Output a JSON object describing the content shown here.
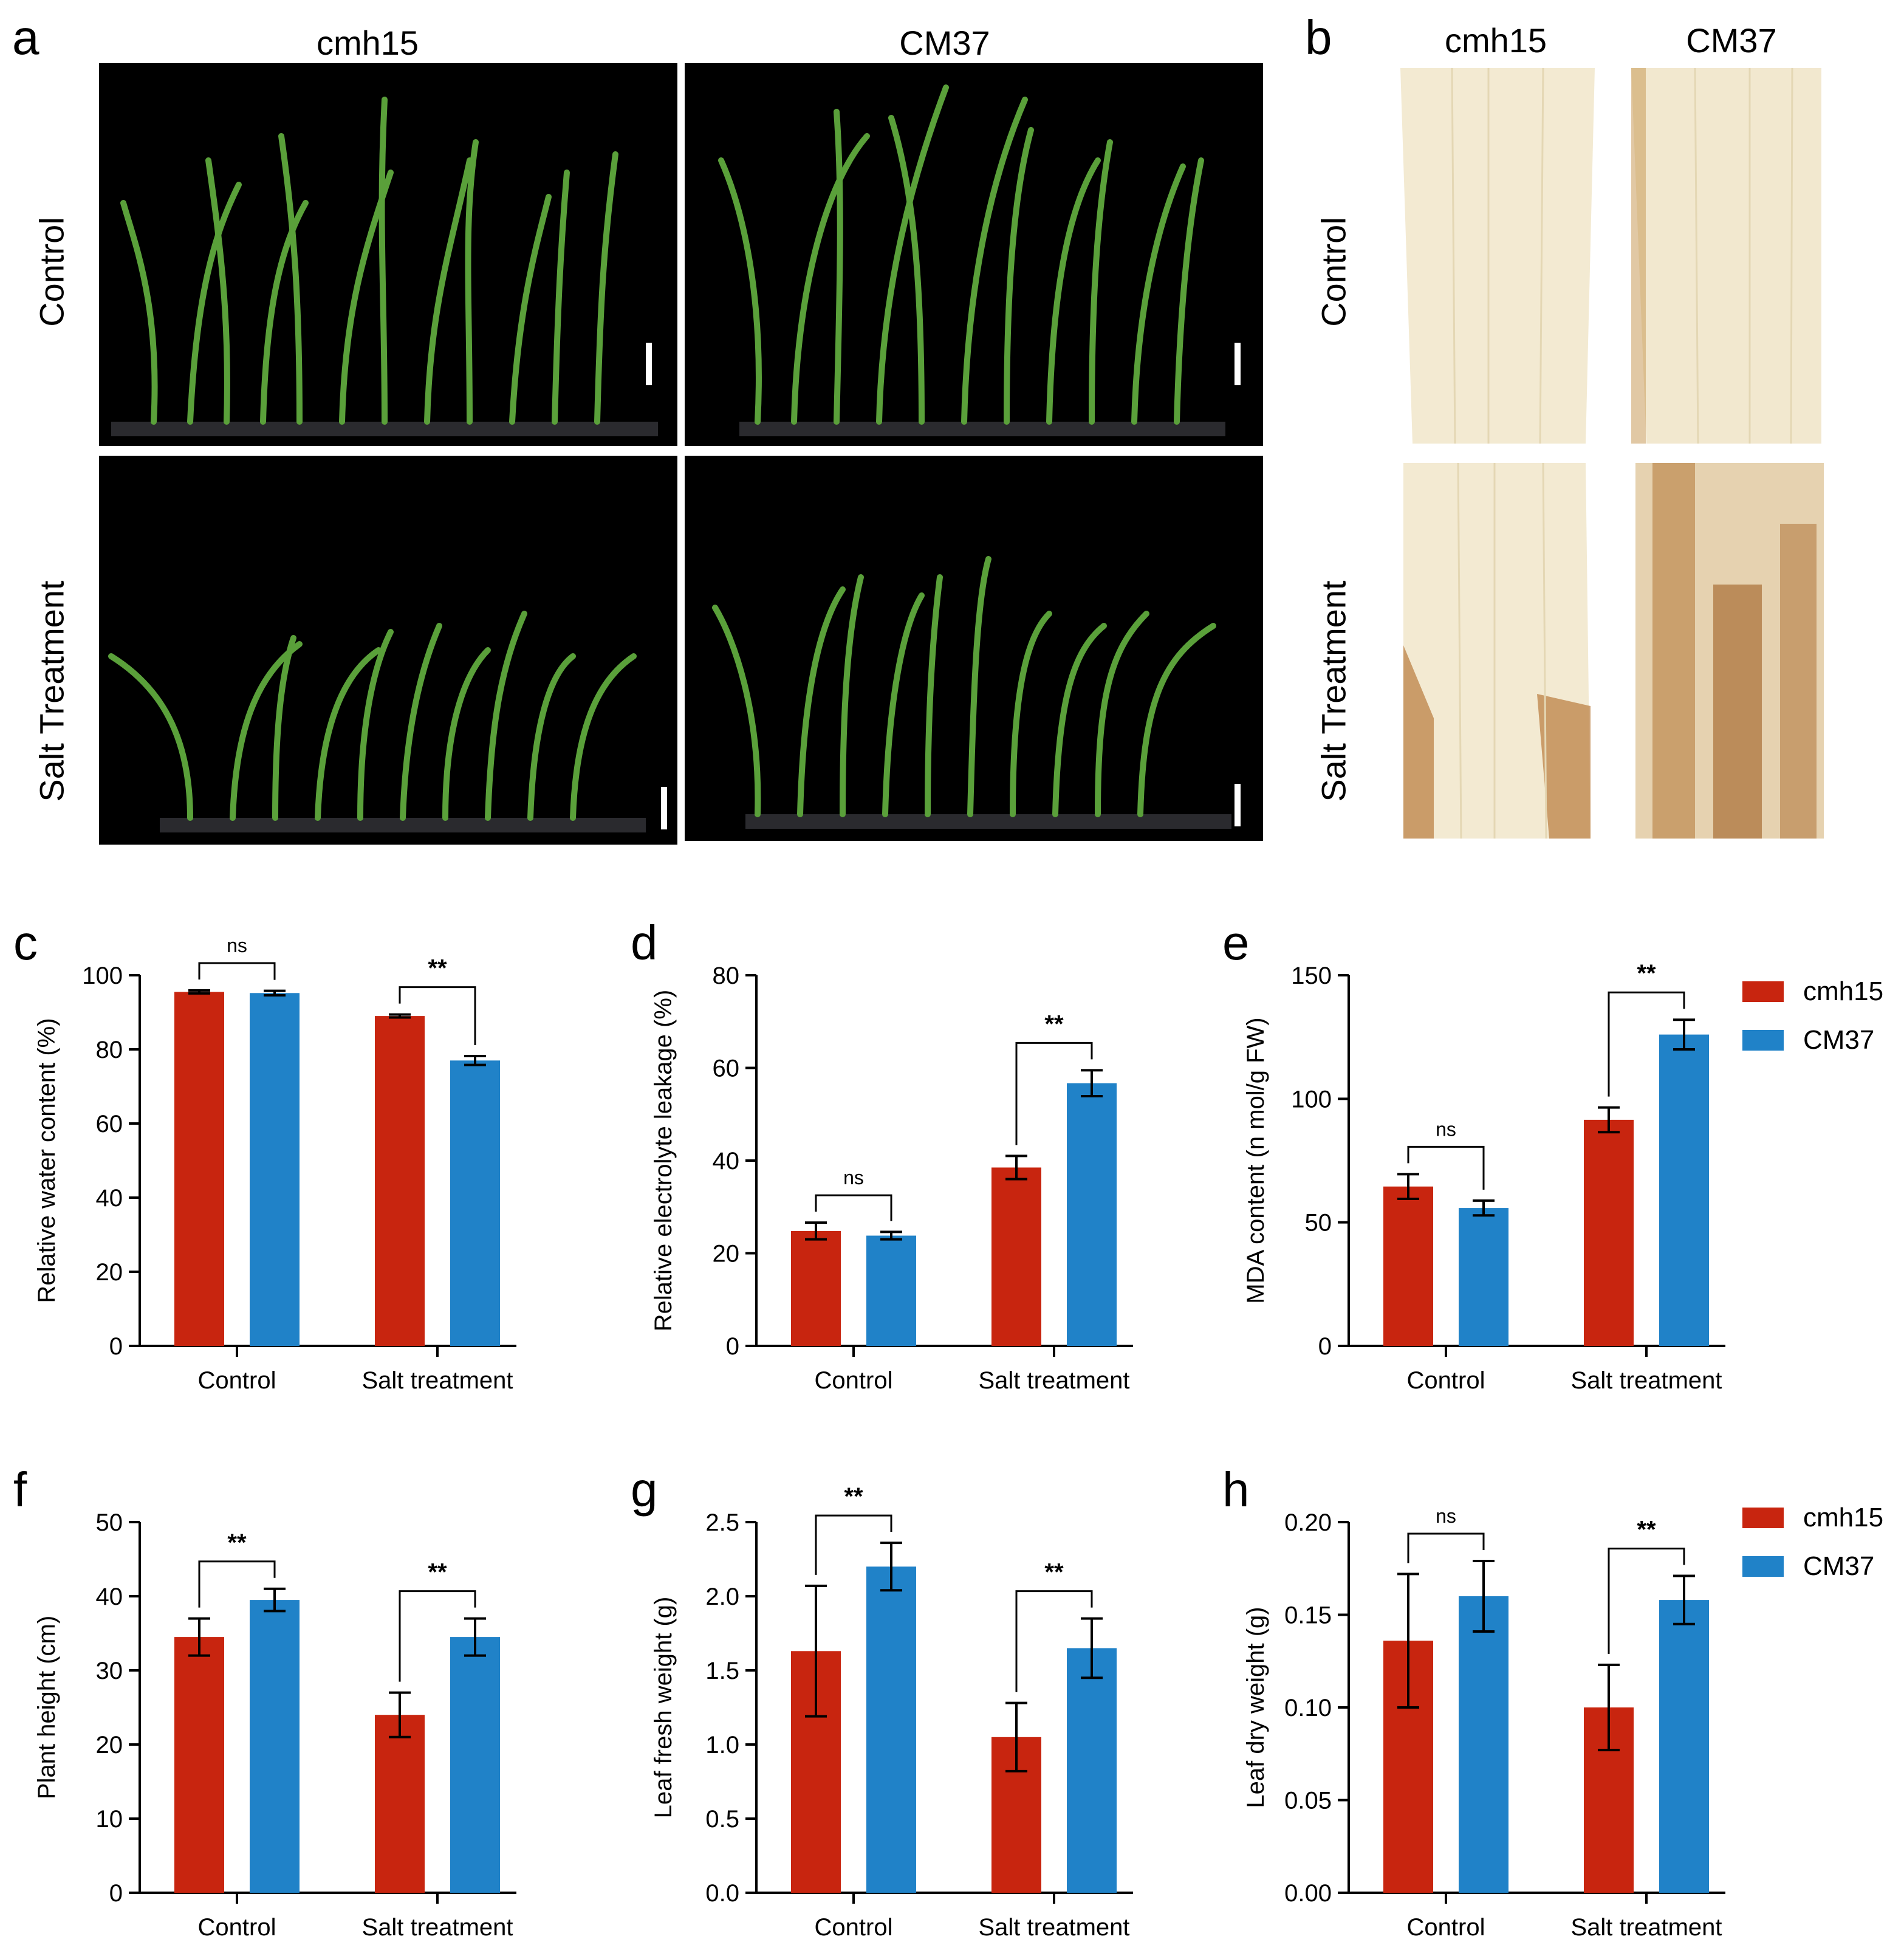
{
  "figure": {
    "panels": {
      "a": "a",
      "b": "b",
      "c": "c",
      "d": "d",
      "e": "e",
      "f": "f",
      "g": "g",
      "h": "h"
    },
    "photo_columns": [
      "cmh15",
      "CM37"
    ],
    "photo_rows": [
      "Control",
      "Salt Treatment"
    ],
    "leaf_columns": [
      "cmh15",
      "CM37"
    ],
    "leaf_rows": [
      "Control",
      "Salt Treatment"
    ]
  },
  "colors": {
    "cmh15": "#C8250F",
    "CM37": "#2082C8"
  },
  "legend": [
    {
      "label": "cmh15",
      "color": "#C8250F"
    },
    {
      "label": "CM37",
      "color": "#2082C8"
    }
  ],
  "chart_data": [
    {
      "panel": "c",
      "type": "bar",
      "categories": [
        "Control",
        "Salt treatment"
      ],
      "ylabel": "Relative water content (%)",
      "ylim": [
        0,
        100
      ],
      "yticks": [
        "0",
        "20",
        "40",
        "60",
        "80",
        "100"
      ],
      "ytick_values": [
        0,
        20,
        40,
        60,
        80,
        100
      ],
      "series": [
        {
          "name": "cmh15",
          "values": [
            95.5,
            89.0
          ],
          "errors": [
            0.4,
            0.4
          ]
        },
        {
          "name": "CM37",
          "values": [
            95.2,
            77.0
          ],
          "errors": [
            0.6,
            1.2
          ]
        }
      ],
      "significance": [
        "ns",
        "**"
      ]
    },
    {
      "panel": "d",
      "type": "bar",
      "categories": [
        "Control",
        "Salt treatment"
      ],
      "ylabel": "Relative electrolyte leakage (%)",
      "ylim": [
        0,
        80
      ],
      "yticks": [
        "0",
        "20",
        "40",
        "60",
        "80"
      ],
      "ytick_values": [
        0,
        20,
        40,
        60,
        80
      ],
      "series": [
        {
          "name": "cmh15",
          "values": [
            24.8,
            38.5
          ],
          "errors": [
            1.8,
            2.5
          ]
        },
        {
          "name": "CM37",
          "values": [
            23.8,
            56.7
          ],
          "errors": [
            0.8,
            2.8
          ]
        }
      ],
      "significance": [
        "ns",
        "**"
      ]
    },
    {
      "panel": "e",
      "type": "bar",
      "categories": [
        "Control",
        "Salt treatment"
      ],
      "ylabel": "MDA content (n mol/g FW)",
      "ylim": [
        0,
        150
      ],
      "yticks": [
        "0",
        "50",
        "100",
        "150"
      ],
      "ytick_values": [
        0,
        50,
        100,
        150
      ],
      "series": [
        {
          "name": "cmh15",
          "values": [
            64.5,
            91.5
          ],
          "errors": [
            5.0,
            5.0
          ]
        },
        {
          "name": "CM37",
          "values": [
            55.8,
            126.0
          ],
          "errors": [
            3.0,
            6.0
          ]
        }
      ],
      "significance": [
        "ns",
        "**"
      ]
    },
    {
      "panel": "f",
      "type": "bar",
      "categories": [
        "Control",
        "Salt treatment"
      ],
      "ylabel": "Plant height (cm)",
      "ylim": [
        0,
        50
      ],
      "yticks": [
        "0",
        "10",
        "20",
        "30",
        "40",
        "50"
      ],
      "ytick_values": [
        0,
        10,
        20,
        30,
        40,
        50
      ],
      "series": [
        {
          "name": "cmh15",
          "values": [
            34.5,
            24.0
          ],
          "errors": [
            2.5,
            3.0
          ]
        },
        {
          "name": "CM37",
          "values": [
            39.5,
            34.5
          ],
          "errors": [
            1.5,
            2.5
          ]
        }
      ],
      "significance": [
        "**",
        "**"
      ]
    },
    {
      "panel": "g",
      "type": "bar",
      "categories": [
        "Control",
        "Salt treatment"
      ],
      "ylabel": "Leaf fresh weight (g)",
      "ylim": [
        0,
        2.5
      ],
      "yticks": [
        "0.0",
        "0.5",
        "1.0",
        "1.5",
        "2.0",
        "2.5"
      ],
      "ytick_values": [
        0,
        0.5,
        1.0,
        1.5,
        2.0,
        2.5
      ],
      "series": [
        {
          "name": "cmh15",
          "values": [
            1.63,
            1.05
          ],
          "errors": [
            0.44,
            0.23
          ]
        },
        {
          "name": "CM37",
          "values": [
            2.2,
            1.65
          ],
          "errors": [
            0.16,
            0.2
          ]
        }
      ],
      "significance": [
        "**",
        "**"
      ]
    },
    {
      "panel": "h",
      "type": "bar",
      "categories": [
        "Control",
        "Salt treatment"
      ],
      "ylabel": "Leaf dry weight (g)",
      "ylim": [
        0,
        0.2
      ],
      "yticks": [
        "0.00",
        "0.05",
        "0.10",
        "0.15",
        "0.20"
      ],
      "ytick_values": [
        0,
        0.05,
        0.1,
        0.15,
        0.2
      ],
      "series": [
        {
          "name": "cmh15",
          "values": [
            0.136,
            0.1
          ],
          "errors": [
            0.036,
            0.023
          ]
        },
        {
          "name": "CM37",
          "values": [
            0.16,
            0.158
          ],
          "errors": [
            0.019,
            0.013
          ]
        }
      ],
      "significance": [
        "ns",
        "**"
      ]
    }
  ]
}
